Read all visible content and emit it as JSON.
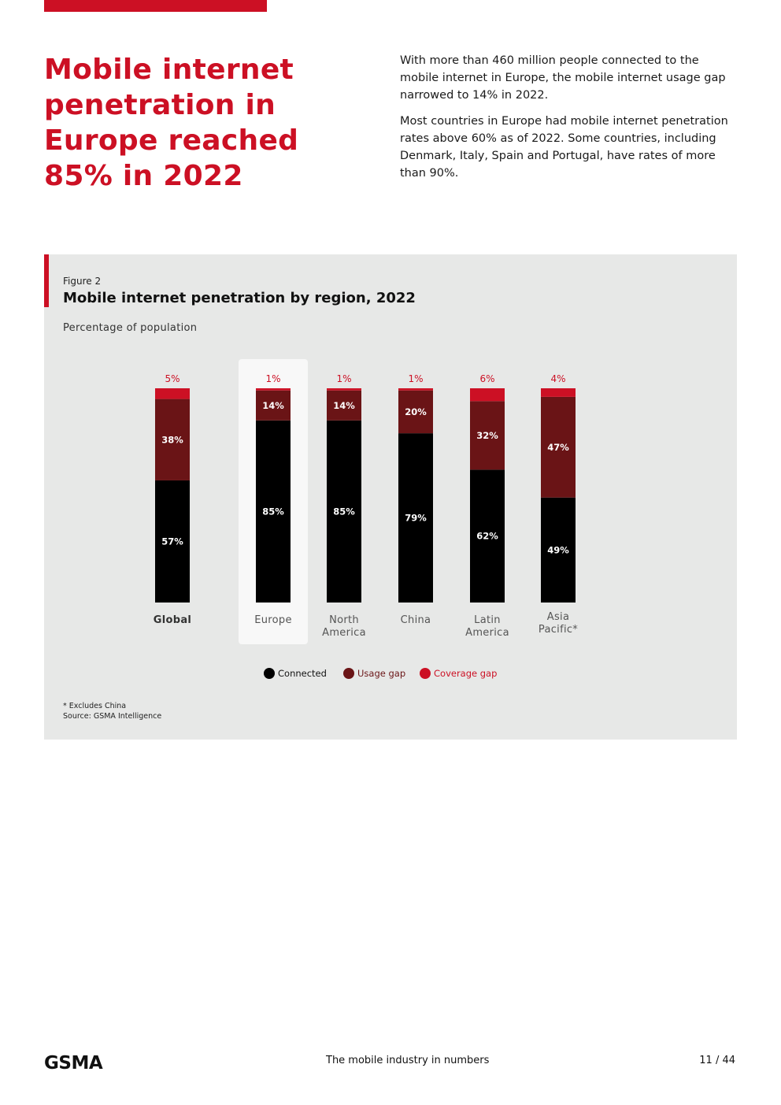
{
  "headline": "Mobile internet penetration in Europe reached 85% in 2022",
  "intro": [
    "With more than 460 million people connected to the mobile internet in Europe, the mobile internet usage gap narrowed to 14% in 2022.",
    "Most countries in Europe had mobile internet penetration rates above 60% as of 2022. Some countries, including Denmark, Italy, Spain and Portugal, have rates of more than 90%."
  ],
  "figure": {
    "label": "Figure 2",
    "title": "Mobile internet penetration by region, 2022",
    "subtitle": "Percentage of population",
    "footnotes": [
      "* Excludes China",
      "Source: GSMA Intelligence"
    ]
  },
  "colors": {
    "accent": "#cc1024",
    "connected": "#000000",
    "usage_gap": "#6a1416",
    "coverage_gap": "#cc1024"
  },
  "chart_data": {
    "type": "bar",
    "stacked": true,
    "categories": [
      "Global",
      "Europe",
      "North America",
      "China",
      "Latin America",
      "Asia Pacific*"
    ],
    "category_lines": [
      [
        "Global"
      ],
      [
        "Europe"
      ],
      [
        "North",
        "America"
      ],
      [
        "China"
      ],
      [
        "Latin",
        "America"
      ],
      [
        "Asia",
        "Pacific*"
      ]
    ],
    "highlighted_category": "Europe",
    "bold_categories": [
      "Global"
    ],
    "series": [
      {
        "name": "Connected",
        "values": [
          57,
          85,
          85,
          79,
          62,
          49
        ],
        "color": "#000000"
      },
      {
        "name": "Usage gap",
        "values": [
          38,
          14,
          14,
          20,
          32,
          47
        ],
        "color": "#6a1416"
      },
      {
        "name": "Coverage gap",
        "values": [
          5,
          1,
          1,
          1,
          6,
          4
        ],
        "color": "#cc1024"
      }
    ],
    "ylim": [
      0,
      100
    ],
    "legend_position": "bottom",
    "grid": false
  },
  "footer": {
    "logo": "GSMA",
    "center": "The mobile industry in numbers",
    "page": "11 / 44"
  }
}
